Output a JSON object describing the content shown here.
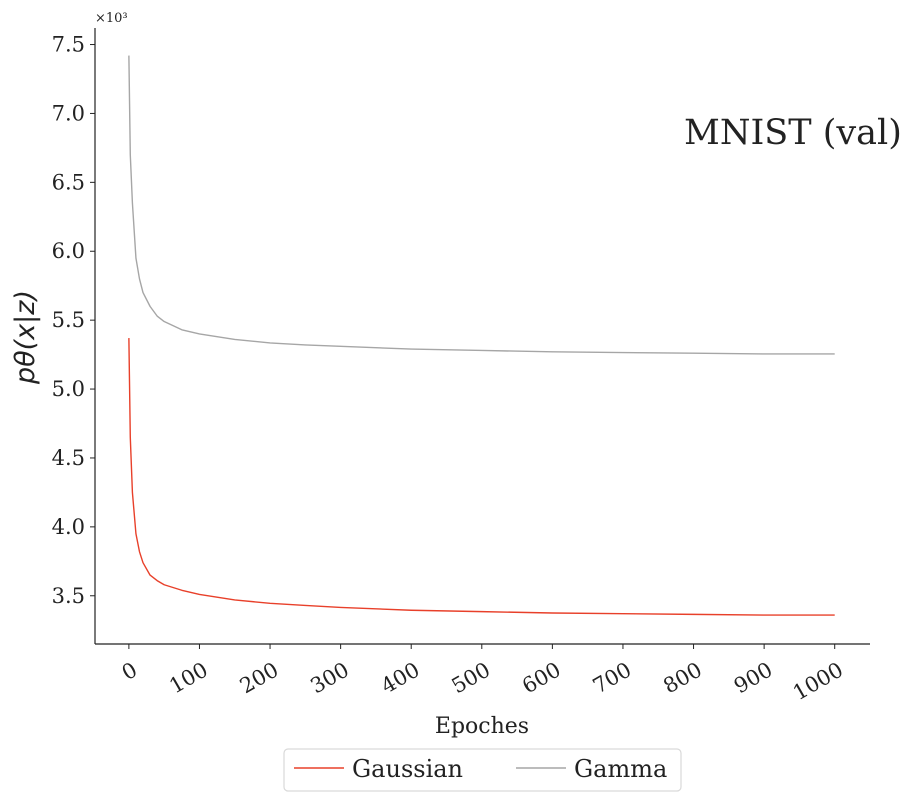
{
  "chart_data": {
    "type": "line",
    "annotation": "MNIST (val)",
    "xlabel": "Epoches",
    "ylabel": "pθ(x|z)",
    "y_multiplier_label": "×10³",
    "xlim": [
      -48,
      1050
    ],
    "ylim": [
      3.15,
      7.62
    ],
    "x_ticks": [
      0,
      100,
      200,
      300,
      400,
      500,
      600,
      700,
      800,
      900,
      1000
    ],
    "y_ticks": [
      3.5,
      4.0,
      4.5,
      5.0,
      5.5,
      6.0,
      6.5,
      7.0,
      7.5
    ],
    "y_tick_labels": [
      "3.5",
      "4.0",
      "4.5",
      "5.0",
      "5.5",
      "6.0",
      "6.5",
      "7.0",
      "7.5"
    ],
    "grid": false,
    "legend_position": "bottom-center",
    "series": [
      {
        "name": "Gaussian",
        "color": "#e8402a",
        "x": [
          0,
          2,
          5,
          10,
          15,
          20,
          30,
          40,
          50,
          75,
          100,
          150,
          200,
          250,
          300,
          400,
          500,
          600,
          700,
          800,
          900,
          1000
        ],
        "y": [
          5.37,
          4.65,
          4.25,
          3.95,
          3.82,
          3.74,
          3.65,
          3.61,
          3.58,
          3.54,
          3.51,
          3.47,
          3.445,
          3.43,
          3.415,
          3.395,
          3.385,
          3.375,
          3.37,
          3.365,
          3.36,
          3.36
        ]
      },
      {
        "name": "Gamma",
        "color": "#a6a6a6",
        "x": [
          0,
          2,
          5,
          10,
          15,
          20,
          30,
          40,
          50,
          75,
          100,
          150,
          200,
          250,
          300,
          400,
          500,
          600,
          700,
          800,
          900,
          1000
        ],
        "y": [
          7.42,
          6.7,
          6.35,
          5.95,
          5.8,
          5.7,
          5.6,
          5.53,
          5.49,
          5.43,
          5.4,
          5.36,
          5.335,
          5.32,
          5.31,
          5.29,
          5.28,
          5.27,
          5.265,
          5.26,
          5.255,
          5.255
        ]
      }
    ]
  }
}
